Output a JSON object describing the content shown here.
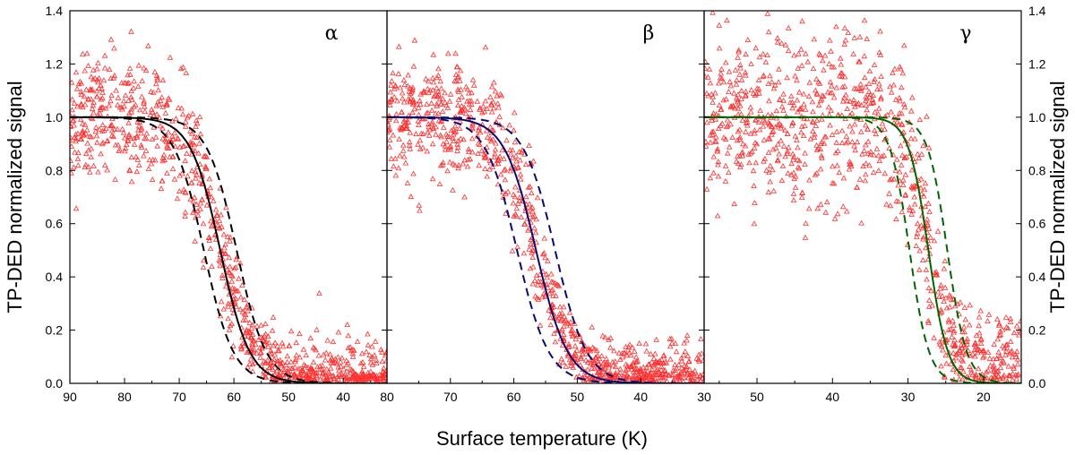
{
  "chart_data": {
    "type": "scatter",
    "xlabel": "Surface temperature (K)",
    "ylabel_left": "TP-DED normalized signal",
    "ylabel_right": "TP-DED normalized signal",
    "ylim": [
      0,
      1.4
    ],
    "yticks": [
      "0.0",
      "0.2",
      "0.4",
      "0.6",
      "0.8",
      "1.0",
      "1.2",
      "1.4"
    ],
    "panels": [
      {
        "label": "α",
        "xlim": [
          90,
          32
        ],
        "xticks": [
          "90",
          "80",
          "70",
          "60",
          "50",
          "40"
        ],
        "xtick_values": [
          90,
          80,
          70,
          60,
          50,
          40
        ],
        "line_color": "#000000",
        "fit": {
          "midpoint": 62.5,
          "width": 2.7
        },
        "bounds": [
          {
            "midpoint": 65.5,
            "width": 2.7
          },
          {
            "midpoint": 59.5,
            "width": 2.7
          }
        ],
        "scatter": {
          "low_level": 0.04,
          "high_level": 1.0,
          "spread": 0.12,
          "seed": 11
        }
      },
      {
        "label": "β",
        "xlim": [
          80,
          30
        ],
        "xticks": [
          "80",
          "70",
          "60",
          "50",
          "40",
          "30"
        ],
        "xtick_values": [
          80,
          70,
          60,
          50,
          40,
          30
        ],
        "line_color": "#0a0a6e",
        "fit": {
          "midpoint": 56.5,
          "width": 2.5
        },
        "bounds": [
          {
            "midpoint": 59.5,
            "width": 2.5
          },
          {
            "midpoint": 53.5,
            "width": 2.5
          }
        ],
        "scatter": {
          "low_level": 0.03,
          "high_level": 1.0,
          "spread": 0.11,
          "seed": 23
        }
      },
      {
        "label": "γ",
        "xlim": [
          57,
          15
        ],
        "xticks": [
          "50",
          "40",
          "30",
          "20"
        ],
        "xtick_values": [
          50,
          40,
          30,
          20
        ],
        "line_color": "#006400",
        "fit": {
          "midpoint": 27.3,
          "width": 1.3
        },
        "bounds": [
          {
            "midpoint": 29.8,
            "width": 1.3
          },
          {
            "midpoint": 24.8,
            "width": 1.3
          }
        ],
        "scatter": {
          "low_level": 0.08,
          "high_level": 1.0,
          "spread": 0.16,
          "seed": 37
        }
      }
    ],
    "marker": "open triangle",
    "marker_color": "#ff3030"
  }
}
